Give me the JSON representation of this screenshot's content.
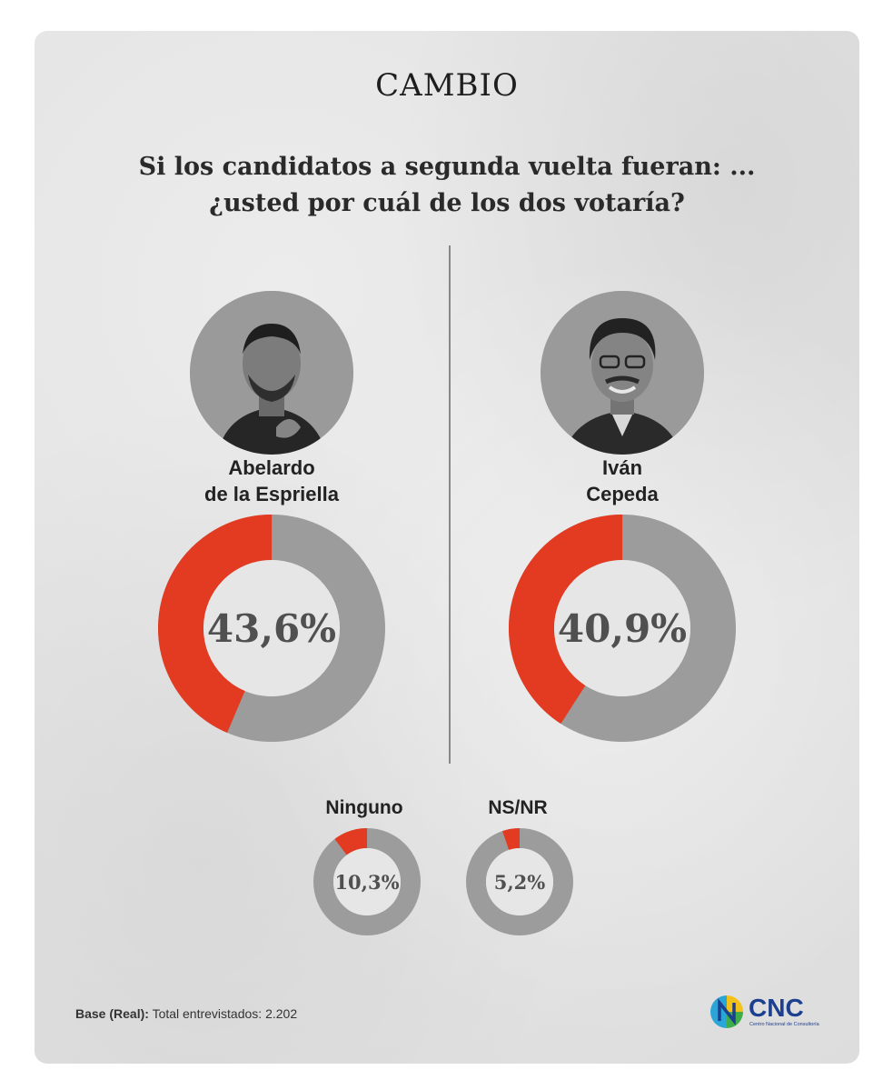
{
  "brand": "CAMBIO",
  "question_line1": "Si los candidatos a segunda vuelta fueran: ...",
  "question_line2": "¿usted por cuál de los dos votaría?",
  "colors": {
    "accent": "#e33b22",
    "rest": "#9c9c9c",
    "center": "#e6e6e6"
  },
  "chart_data": [
    {
      "type": "pie",
      "name_line1": "Abelardo",
      "name_line2": "de la Espriella",
      "value": 43.6,
      "label": "43,6%"
    },
    {
      "type": "pie",
      "name_line1": "Iván",
      "name_line2": "Cepeda",
      "value": 40.9,
      "label": "40,9%"
    },
    {
      "type": "pie",
      "name": "Ninguno",
      "value": 10.3,
      "label": "10,3%"
    },
    {
      "type": "pie",
      "name": "NS/NR",
      "value": 5.2,
      "label": "5,2%"
    }
  ],
  "footer": {
    "base_bold": "Base (Real):",
    "base_text": "Total entrevistados: 2.202",
    "logo_text": "CNC",
    "logo_sub": "Centro Nacional de Consultoría"
  }
}
